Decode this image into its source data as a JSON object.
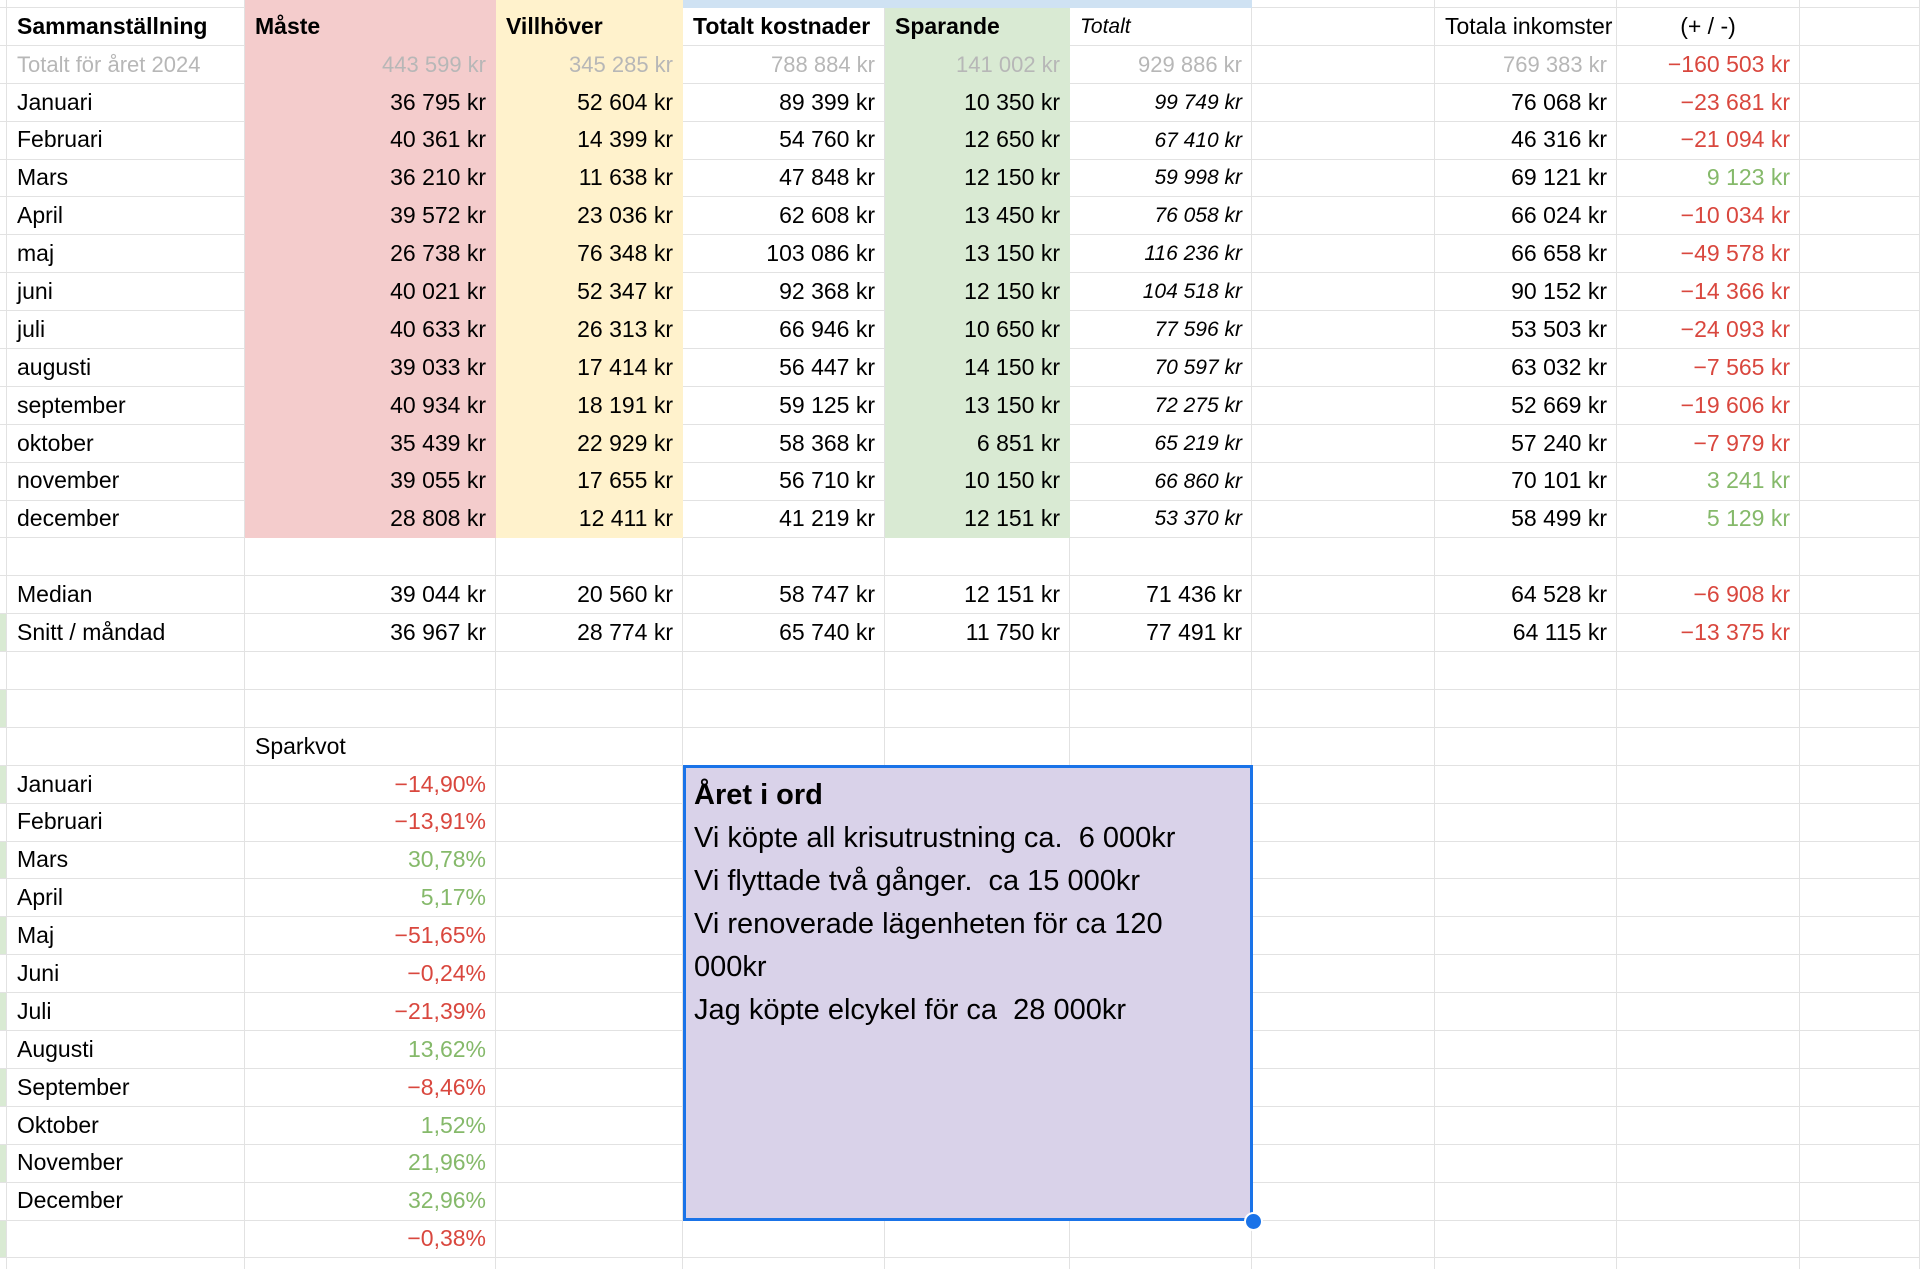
{
  "palette": {
    "grid": "#e2e2e2",
    "pink": "#f4cccc",
    "yellow": "#fff2cc",
    "green": "#d9ead3",
    "blue_strip": "#cfe2f3",
    "purple": "#d9d2e9",
    "selection_blue": "#1a73e8",
    "red_text": "#d9473e",
    "green_text": "#85b96a",
    "gray_text": "#b7b7b7"
  },
  "header": {
    "col_a": "Sammanställning",
    "col_b": "Måste",
    "col_c": "Villhöver",
    "col_d": "Totalt kostnader",
    "col_e": "Sparande",
    "col_f": "Totalt",
    "col_h": "Totala inkomster",
    "col_i": "(+ / -)"
  },
  "summary_table": {
    "total_row": {
      "label": "Totalt för året 2024",
      "maste": "443 599 kr",
      "villhover": "345 285 kr",
      "kostnader": "788 884 kr",
      "sparande": "141 002 kr",
      "totalt": "929 886 kr",
      "inkomster": "769 383 kr",
      "diff": "−160 503 kr",
      "diff_cls": "neg"
    },
    "months": [
      {
        "label": "Januari",
        "maste": "36 795 kr",
        "villhover": "52 604 kr",
        "kostnader": "89 399 kr",
        "sparande": "10 350 kr",
        "totalt": "99 749 kr",
        "inkomster": "76 068 kr",
        "diff": "−23 681 kr",
        "diff_cls": "neg"
      },
      {
        "label": "Februari",
        "maste": "40 361 kr",
        "villhover": "14 399 kr",
        "kostnader": "54 760 kr",
        "sparande": "12 650 kr",
        "totalt": "67 410 kr",
        "inkomster": "46 316 kr",
        "diff": "−21 094 kr",
        "diff_cls": "neg"
      },
      {
        "label": "Mars",
        "maste": "36 210 kr",
        "villhover": "11 638 kr",
        "kostnader": "47 848 kr",
        "sparande": "12 150 kr",
        "totalt": "59 998 kr",
        "inkomster": "69 121 kr",
        "diff": "9 123 kr",
        "diff_cls": "pos"
      },
      {
        "label": "April",
        "maste": "39 572 kr",
        "villhover": "23 036 kr",
        "kostnader": "62 608 kr",
        "sparande": "13 450 kr",
        "totalt": "76 058 kr",
        "inkomster": "66 024 kr",
        "diff": "−10 034 kr",
        "diff_cls": "neg"
      },
      {
        "label": "maj",
        "maste": "26 738 kr",
        "villhover": "76 348 kr",
        "kostnader": "103 086 kr",
        "sparande": "13 150 kr",
        "totalt": "116 236 kr",
        "inkomster": "66 658 kr",
        "diff": "−49 578 kr",
        "diff_cls": "neg"
      },
      {
        "label": "juni",
        "maste": "40 021 kr",
        "villhover": "52 347 kr",
        "kostnader": "92 368 kr",
        "sparande": "12 150 kr",
        "totalt": "104 518 kr",
        "inkomster": "90 152 kr",
        "diff": "−14 366 kr",
        "diff_cls": "neg"
      },
      {
        "label": "juli",
        "maste": "40 633 kr",
        "villhover": "26 313 kr",
        "kostnader": "66 946 kr",
        "sparande": "10 650 kr",
        "totalt": "77 596 kr",
        "inkomster": "53 503 kr",
        "diff": "−24 093 kr",
        "diff_cls": "neg"
      },
      {
        "label": "augusti",
        "maste": "39 033 kr",
        "villhover": "17 414 kr",
        "kostnader": "56 447 kr",
        "sparande": "14 150 kr",
        "totalt": "70 597 kr",
        "inkomster": "63 032 kr",
        "diff": "−7 565 kr",
        "diff_cls": "neg"
      },
      {
        "label": "september",
        "maste": "40 934 kr",
        "villhover": "18 191 kr",
        "kostnader": "59 125 kr",
        "sparande": "13 150 kr",
        "totalt": "72 275 kr",
        "inkomster": "52 669 kr",
        "diff": "−19 606 kr",
        "diff_cls": "neg"
      },
      {
        "label": "oktober",
        "maste": "35 439 kr",
        "villhover": "22 929 kr",
        "kostnader": "58 368 kr",
        "sparande": "6 851 kr",
        "totalt": "65 219 kr",
        "inkomster": "57 240 kr",
        "diff": "−7 979 kr",
        "diff_cls": "neg"
      },
      {
        "label": "november",
        "maste": "39 055 kr",
        "villhover": "17 655 kr",
        "kostnader": "56 710 kr",
        "sparande": "10 150 kr",
        "totalt": "66 860 kr",
        "inkomster": "70 101 kr",
        "diff": "3 241 kr",
        "diff_cls": "pos"
      },
      {
        "label": "december",
        "maste": "28 808 kr",
        "villhover": "12 411 kr",
        "kostnader": "41 219 kr",
        "sparande": "12 151 kr",
        "totalt": "53 370 kr",
        "inkomster": "58 499 kr",
        "diff": "5 129 kr",
        "diff_cls": "pos"
      }
    ],
    "median": {
      "label": "Median",
      "maste": "39 044 kr",
      "villhover": "20 560 kr",
      "kostnader": "58 747 kr",
      "sparande": "12 151 kr",
      "totalt": "71 436 kr",
      "inkomster": "64 528 kr",
      "diff": "−6 908 kr",
      "diff_cls": "neg"
    },
    "snitt": {
      "label": "Snitt / måndad",
      "maste": "36 967 kr",
      "villhover": "28 774 kr",
      "kostnader": "65 740 kr",
      "sparande": "11 750 kr",
      "totalt": "77 491 kr",
      "inkomster": "64 115 kr",
      "diff": "−13 375 kr",
      "diff_cls": "neg"
    }
  },
  "sparkvot": {
    "label": "Sparkvot",
    "rows": [
      {
        "label": "Januari",
        "value": "−14,90%",
        "cls": "neg"
      },
      {
        "label": "Februari",
        "value": "−13,91%",
        "cls": "neg"
      },
      {
        "label": "Mars",
        "value": "30,78%",
        "cls": "pos"
      },
      {
        "label": "April",
        "value": "5,17%",
        "cls": "pos"
      },
      {
        "label": "Maj",
        "value": "−51,65%",
        "cls": "neg"
      },
      {
        "label": "Juni",
        "value": "−0,24%",
        "cls": "neg"
      },
      {
        "label": "Juli",
        "value": "−21,39%",
        "cls": "neg"
      },
      {
        "label": "Augusti",
        "value": "13,62%",
        "cls": "pos"
      },
      {
        "label": "September",
        "value": "−8,46%",
        "cls": "neg"
      },
      {
        "label": "Oktober",
        "value": "1,52%",
        "cls": "pos"
      },
      {
        "label": "November",
        "value": "21,96%",
        "cls": "pos"
      },
      {
        "label": "December",
        "value": "32,96%",
        "cls": "pos"
      },
      {
        "label": "",
        "value": "−0,38%",
        "cls": "neg"
      }
    ]
  },
  "note_box": {
    "title": "Året i ord",
    "lines": [
      "Vi köpte all krisutrustning ca.  6 000kr",
      "Vi flyttade två gånger.  ca 15 000kr",
      "Vi renoverade lägenheten för ca 120 000kr",
      "Jag köpte elcykel för ca  28 000kr"
    ]
  }
}
